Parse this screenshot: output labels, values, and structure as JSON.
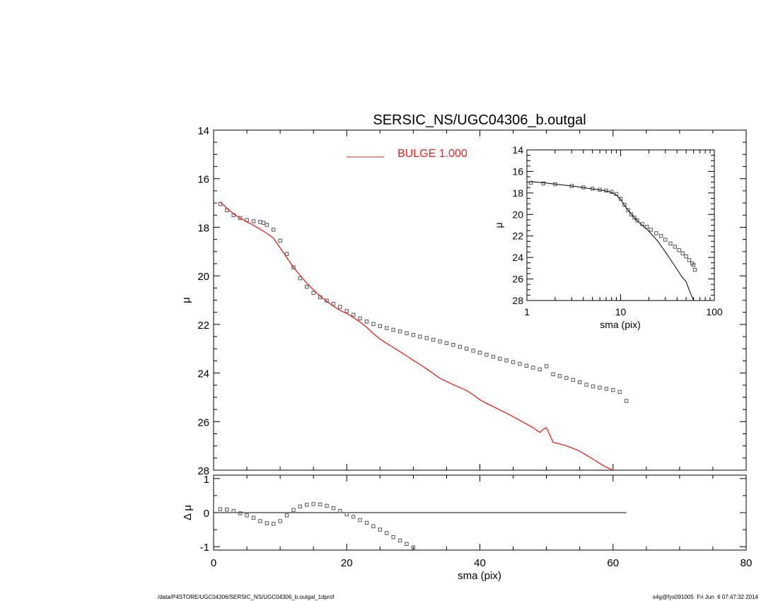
{
  "chart_data": [
    {
      "type": "scatter",
      "title": "SERSIC_NS/UGC04306_b.outgal",
      "xlabel": "",
      "ylabel": "μ",
      "xlim": [
        0,
        80
      ],
      "ylim": [
        28,
        14
      ],
      "y_inverted": true,
      "y_ticks": [
        "14",
        "16",
        "18",
        "20",
        "22",
        "24",
        "26",
        "28"
      ],
      "legend": {
        "placement": "top-center",
        "entries": [
          {
            "label": "BULGE  1.000",
            "color": "#e8201e"
          }
        ]
      },
      "series": [
        {
          "kind": "markers",
          "marker": "open-square",
          "color": "#555555",
          "points": [
            [
              1.0,
              17.05
            ],
            [
              2,
              17.3
            ],
            [
              3,
              17.5
            ],
            [
              4,
              17.62
            ],
            [
              5,
              17.7
            ],
            [
              6,
              17.75
            ],
            [
              7,
              17.78
            ],
            [
              7.5,
              17.82
            ],
            [
              8,
              17.9
            ],
            [
              9,
              18.1
            ],
            [
              10,
              18.55
            ],
            [
              11,
              19.1
            ],
            [
              12,
              19.65
            ],
            [
              13,
              20.1
            ],
            [
              14,
              20.45
            ],
            [
              15,
              20.7
            ],
            [
              16,
              20.88
            ],
            [
              17,
              21.02
            ],
            [
              18,
              21.15
            ],
            [
              19,
              21.28
            ],
            [
              20,
              21.45
            ],
            [
              21,
              21.6
            ],
            [
              22,
              21.75
            ],
            [
              23,
              21.88
            ],
            [
              24,
              21.98
            ],
            [
              25,
              22.07
            ],
            [
              26,
              22.15
            ],
            [
              27,
              22.22
            ],
            [
              28,
              22.29
            ],
            [
              29,
              22.36
            ],
            [
              30,
              22.43
            ],
            [
              31,
              22.5
            ],
            [
              32,
              22.56
            ],
            [
              33,
              22.63
            ],
            [
              34,
              22.7
            ],
            [
              35,
              22.77
            ],
            [
              36,
              22.84
            ],
            [
              37,
              22.92
            ],
            [
              38,
              23.0
            ],
            [
              39,
              23.08
            ],
            [
              40,
              23.16
            ],
            [
              41,
              23.25
            ],
            [
              42,
              23.33
            ],
            [
              43,
              23.41
            ],
            [
              44,
              23.48
            ],
            [
              45,
              23.55
            ],
            [
              46,
              23.62
            ],
            [
              47,
              23.7
            ],
            [
              48,
              23.78
            ],
            [
              49,
              23.85
            ],
            [
              50,
              23.72
            ],
            [
              51,
              24.05
            ],
            [
              52,
              24.12
            ],
            [
              53,
              24.2
            ],
            [
              54,
              24.28
            ],
            [
              55,
              24.38
            ],
            [
              56,
              24.48
            ],
            [
              57,
              24.55
            ],
            [
              58,
              24.6
            ],
            [
              59,
              24.65
            ],
            [
              60,
              24.7
            ],
            [
              61,
              24.78
            ],
            [
              62,
              25.15
            ]
          ]
        },
        {
          "kind": "line",
          "name": "BULGE  1.000",
          "color": "#e8201e",
          "points": [
            [
              1.0,
              16.95
            ],
            [
              2,
              17.22
            ],
            [
              3,
              17.45
            ],
            [
              4,
              17.62
            ],
            [
              5,
              17.78
            ],
            [
              6,
              17.92
            ],
            [
              7,
              18.08
            ],
            [
              8,
              18.25
            ],
            [
              9,
              18.45
            ],
            [
              10,
              18.85
            ],
            [
              11,
              19.25
            ],
            [
              12,
              19.65
            ],
            [
              13,
              19.98
            ],
            [
              14,
              20.3
            ],
            [
              15,
              20.58
            ],
            [
              16,
              20.83
            ],
            [
              17,
              21.05
            ],
            [
              18,
              21.25
            ],
            [
              19,
              21.42
            ],
            [
              20,
              21.55
            ],
            [
              21,
              21.72
            ],
            [
              22,
              21.9
            ],
            [
              23,
              22.12
            ],
            [
              24,
              22.38
            ],
            [
              25,
              22.6
            ],
            [
              26,
              22.78
            ],
            [
              27,
              22.95
            ],
            [
              28,
              23.12
            ],
            [
              29,
              23.3
            ],
            [
              30,
              23.48
            ],
            [
              31,
              23.65
            ],
            [
              32,
              23.83
            ],
            [
              33,
              24.02
            ],
            [
              34,
              24.22
            ],
            [
              35,
              24.35
            ],
            [
              36,
              24.48
            ],
            [
              37,
              24.6
            ],
            [
              38,
              24.72
            ],
            [
              39,
              24.9
            ],
            [
              40,
              25.1
            ],
            [
              41,
              25.25
            ],
            [
              42,
              25.38
            ],
            [
              43,
              25.52
            ],
            [
              44,
              25.65
            ],
            [
              45,
              25.8
            ],
            [
              46,
              25.95
            ],
            [
              47,
              26.1
            ],
            [
              48,
              26.25
            ],
            [
              49,
              26.45
            ],
            [
              49.5,
              26.32
            ],
            [
              50,
              26.25
            ],
            [
              51,
              26.85
            ],
            [
              52,
              26.92
            ],
            [
              53,
              27.0
            ],
            [
              54,
              27.1
            ],
            [
              55,
              27.22
            ],
            [
              56,
              27.38
            ],
            [
              57,
              27.55
            ],
            [
              58,
              27.72
            ],
            [
              59,
              27.88
            ],
            [
              60,
              28.0
            ]
          ]
        }
      ]
    },
    {
      "type": "scatter",
      "title": "",
      "xlabel": "sma (pix)",
      "ylabel": "Δ μ",
      "xlim": [
        0,
        80
      ],
      "ylim": [
        -1.1,
        1.1
      ],
      "y_ticks": [
        "1",
        "0",
        "-1"
      ],
      "x_ticks": [
        "0",
        "20",
        "40",
        "60",
        "80"
      ],
      "reference_line_y": 0,
      "reference_line_x_range": [
        1,
        62
      ],
      "series": [
        {
          "kind": "markers",
          "marker": "open-square",
          "color": "#555555",
          "points": [
            [
              1,
              0.1
            ],
            [
              2,
              0.09
            ],
            [
              3,
              0.05
            ],
            [
              4,
              -0.02
            ],
            [
              5,
              -0.08
            ],
            [
              6,
              -0.15
            ],
            [
              7,
              -0.25
            ],
            [
              8,
              -0.31
            ],
            [
              9,
              -0.33
            ],
            [
              10,
              -0.25
            ],
            [
              11,
              -0.08
            ],
            [
              12,
              0.08
            ],
            [
              13,
              0.18
            ],
            [
              14,
              0.23
            ],
            [
              15,
              0.25
            ],
            [
              16,
              0.24
            ],
            [
              17,
              0.2
            ],
            [
              18,
              0.13
            ],
            [
              19,
              0.05
            ],
            [
              20,
              -0.05
            ],
            [
              21,
              -0.12
            ],
            [
              22,
              -0.22
            ],
            [
              23,
              -0.3
            ],
            [
              24,
              -0.4
            ],
            [
              25,
              -0.5
            ],
            [
              26,
              -0.6
            ],
            [
              27,
              -0.72
            ],
            [
              28,
              -0.82
            ],
            [
              29,
              -0.92
            ],
            [
              30,
              -1.02
            ]
          ]
        }
      ]
    },
    {
      "type": "line",
      "title": "",
      "xlabel": "sma (pix)",
      "ylabel": "μ",
      "x_scale": "log",
      "xlim": [
        1,
        100
      ],
      "ylim": [
        28,
        14
      ],
      "y_inverted": true,
      "x_ticks": [
        "1",
        "10",
        "100"
      ],
      "y_ticks": [
        "14",
        "16",
        "18",
        "20",
        "22",
        "24",
        "26",
        "28"
      ],
      "series": [
        {
          "kind": "markers",
          "marker": "open-square",
          "color": "#555555",
          "points": [
            [
              1.1,
              17.05
            ],
            [
              1.5,
              17.12
            ],
            [
              2,
              17.2
            ],
            [
              3,
              17.35
            ],
            [
              4,
              17.48
            ],
            [
              5,
              17.6
            ],
            [
              6,
              17.7
            ],
            [
              7,
              17.78
            ],
            [
              8,
              17.9
            ],
            [
              9,
              18.1
            ],
            [
              10,
              18.55
            ],
            [
              11,
              19.1
            ],
            [
              12,
              19.6
            ],
            [
              13,
              20.0
            ],
            [
              14,
              20.3
            ],
            [
              15,
              20.55
            ],
            [
              17,
              20.9
            ],
            [
              19,
              21.15
            ],
            [
              21,
              21.42
            ],
            [
              24,
              21.75
            ],
            [
              27,
              22.0
            ],
            [
              30,
              22.35
            ],
            [
              34,
              22.7
            ],
            [
              38,
              23.0
            ],
            [
              42,
              23.32
            ],
            [
              46,
              23.62
            ],
            [
              50,
              23.9
            ],
            [
              54,
              24.25
            ],
            [
              58,
              24.55
            ],
            [
              60,
              24.7
            ],
            [
              62,
              25.15
            ]
          ]
        },
        {
          "kind": "line",
          "color": "#000000",
          "points": [
            [
              1.1,
              16.95
            ],
            [
              1.5,
              17.05
            ],
            [
              2,
              17.18
            ],
            [
              3,
              17.35
            ],
            [
              4,
              17.5
            ],
            [
              5,
              17.62
            ],
            [
              6,
              17.72
            ],
            [
              7,
              17.82
            ],
            [
              8,
              17.95
            ],
            [
              9,
              18.2
            ],
            [
              10,
              18.6
            ],
            [
              11,
              19.15
            ],
            [
              12,
              19.6
            ],
            [
              14,
              20.3
            ],
            [
              16,
              20.8
            ],
            [
              18,
              21.2
            ],
            [
              20,
              21.55
            ],
            [
              25,
              22.5
            ],
            [
              30,
              23.48
            ],
            [
              35,
              24.35
            ],
            [
              40,
              25.1
            ],
            [
              45,
              25.8
            ],
            [
              50,
              26.25
            ],
            [
              55,
              27.22
            ],
            [
              60,
              28.0
            ]
          ]
        }
      ]
    }
  ],
  "footer": {
    "left": "/data/P4STORE/UGC04306/SERSIC_NS/UGC04306_b.outgal_1dprof",
    "right": "s4g@fys091005  Fri Jun  6 07:47:32 2014"
  }
}
